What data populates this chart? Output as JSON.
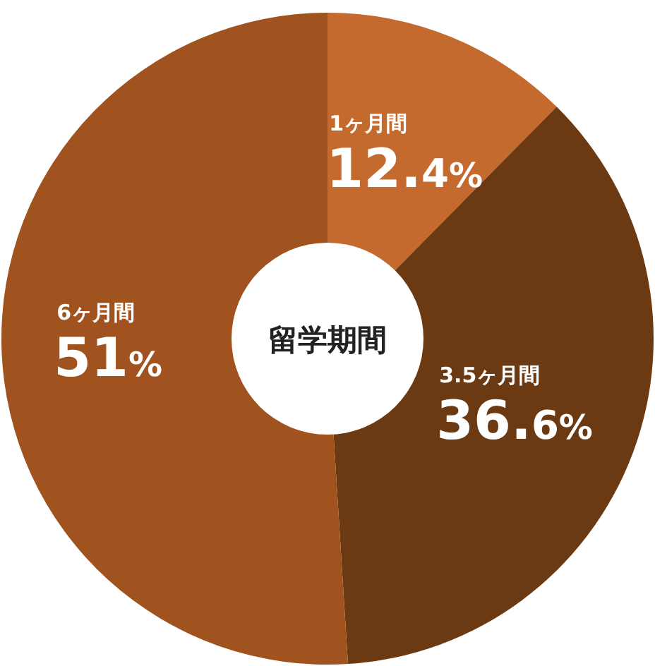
{
  "chart_data": {
    "type": "donut",
    "title": "留学期間",
    "categories": [
      "1ヶ月間",
      "3.5ヶ月間",
      "6ヶ月間"
    ],
    "values": [
      12.4,
      36.6,
      51
    ],
    "value_labels": [
      "12.4%",
      "36.6%",
      "51%"
    ],
    "colors": [
      "#c46a2e",
      "#6b3a12",
      "#a0521f"
    ]
  }
}
